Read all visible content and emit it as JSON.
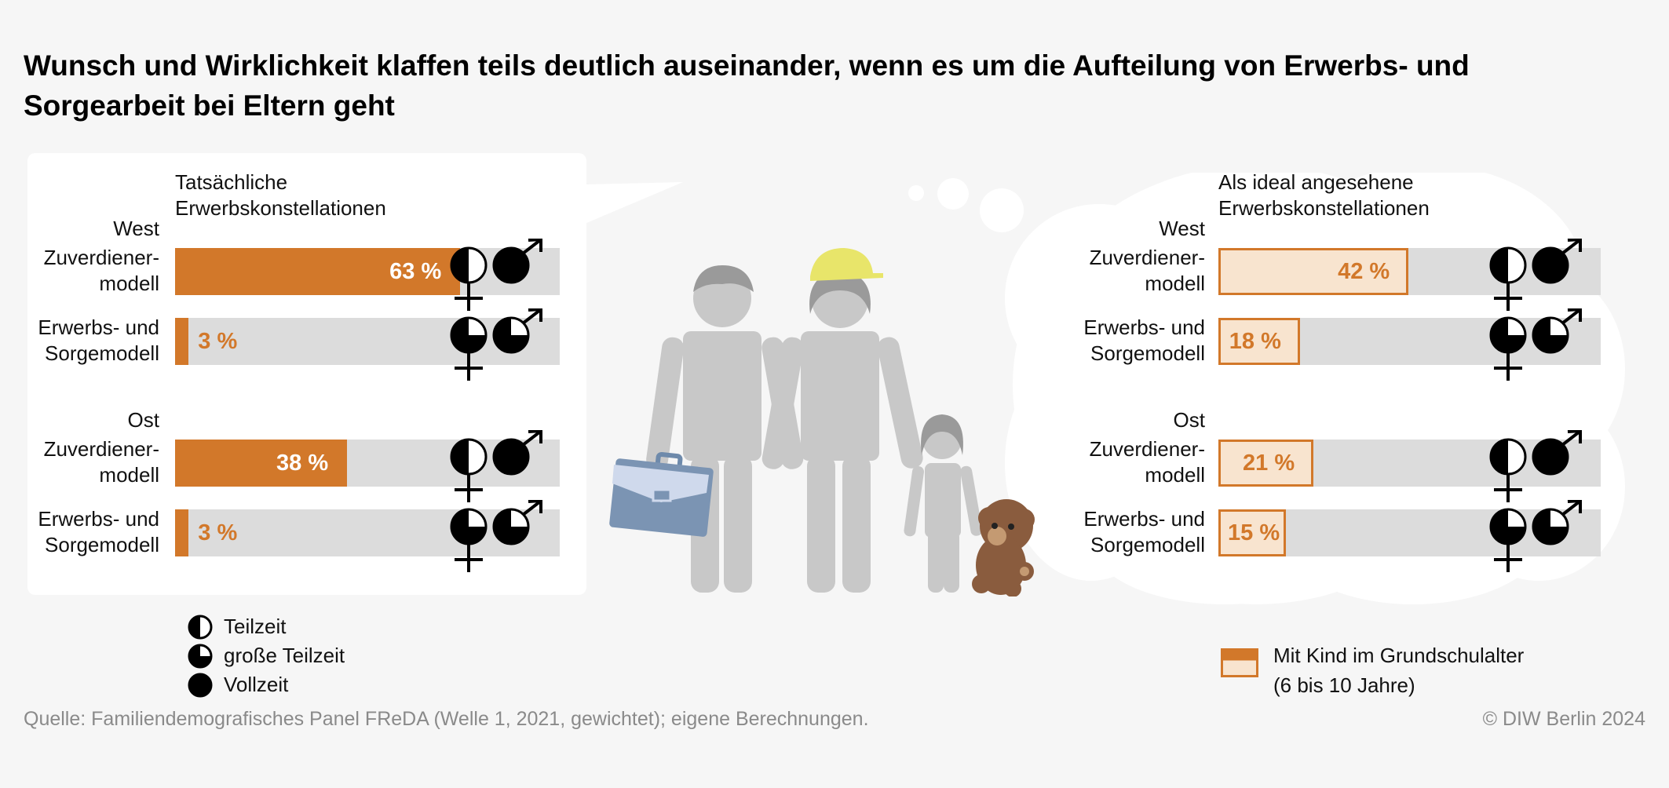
{
  "title": "Wunsch und Wirklichkeit klaffen teils deutlich auseinander, wenn es um die Aufteilung von Erwerbs- und Sorgearbeit bei Eltern geht",
  "colors": {
    "bar_actual": "#d2782a",
    "bar_ideal_fill": "#f8e4cf",
    "track": "#dcdcdc",
    "background": "#f6f6f6"
  },
  "chart_data": [
    {
      "type": "bar",
      "title": "Tatsächliche Erwerbskonstellationen",
      "unit": "%",
      "xlim": [
        0,
        100
      ],
      "groups": [
        {
          "region": "West",
          "rows": [
            {
              "category": "Zuverdiener-modell",
              "label_lines": [
                "Zuverdiener-",
                "modell"
              ],
              "value": 63,
              "value_label": "63 %",
              "mother": "Teilzeit",
              "father": "Vollzeit"
            },
            {
              "category": "Erwerbs- und Sorgemodell",
              "label_lines": [
                "Erwerbs- und",
                "Sorgemodell"
              ],
              "value": 3,
              "value_label": "3 %",
              "mother": "große Teilzeit",
              "father": "große Teilzeit"
            }
          ]
        },
        {
          "region": "Ost",
          "rows": [
            {
              "category": "Zuverdiener-modell",
              "label_lines": [
                "Zuverdiener-",
                "modell"
              ],
              "value": 38,
              "value_label": "38 %",
              "mother": "Teilzeit",
              "father": "Vollzeit"
            },
            {
              "category": "Erwerbs- und Sorgemodell",
              "label_lines": [
                "Erwerbs- und",
                "Sorgemodell"
              ],
              "value": 3,
              "value_label": "3 %",
              "mother": "große Teilzeit",
              "father": "große Teilzeit"
            }
          ]
        }
      ]
    },
    {
      "type": "bar",
      "title": "Als ideal angesehene Erwerbskonstellationen",
      "unit": "%",
      "xlim": [
        0,
        100
      ],
      "groups": [
        {
          "region": "West",
          "rows": [
            {
              "category": "Zuverdiener-modell",
              "label_lines": [
                "Zuverdiener-",
                "modell"
              ],
              "value": 42,
              "value_label": "42 %",
              "mother": "Teilzeit",
              "father": "Vollzeit"
            },
            {
              "category": "Erwerbs- und Sorgemodell",
              "label_lines": [
                "Erwerbs- und",
                "Sorgemodell"
              ],
              "value": 18,
              "value_label": "18 %",
              "mother": "große Teilzeit",
              "father": "große Teilzeit"
            }
          ]
        },
        {
          "region": "Ost",
          "rows": [
            {
              "category": "Zuverdiener-modell",
              "label_lines": [
                "Zuverdiener-",
                "modell"
              ],
              "value": 21,
              "value_label": "21 %",
              "mother": "Teilzeit",
              "father": "Vollzeit"
            },
            {
              "category": "Erwerbs- und Sorgemodell",
              "label_lines": [
                "Erwerbs- und",
                "Sorgemodell"
              ],
              "value": 15,
              "value_label": "15 %",
              "mother": "große Teilzeit",
              "father": "große Teilzeit"
            }
          ]
        }
      ]
    }
  ],
  "legend": {
    "work": [
      {
        "label": "Teilzeit",
        "icon": "half-filled-circle-icon"
      },
      {
        "label": "große Teilzeit",
        "icon": "three-quarter-filled-circle-icon"
      },
      {
        "label": "Vollzeit",
        "icon": "full-circle-icon"
      }
    ],
    "child_line1": "Mit Kind im Grundschulalter",
    "child_line2": "(6 bis 10 Jahre)"
  },
  "footer": {
    "source": "Quelle: Familiendemografisches Panel FReDA (Welle 1, 2021, gewichtet); eigene Berechnungen.",
    "copyright": "© DIW Berlin 2024"
  }
}
